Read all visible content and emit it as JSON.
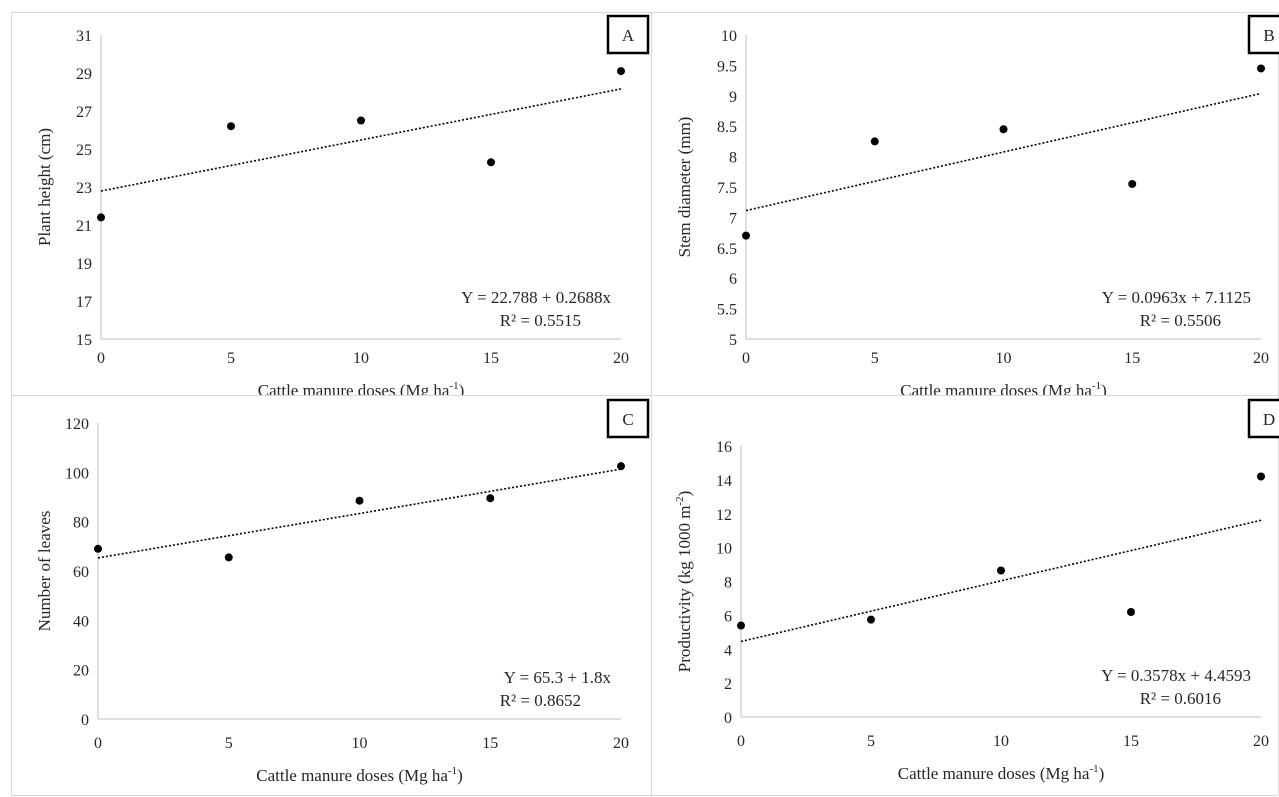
{
  "chart_data": [
    {
      "panel": "A",
      "type": "scatter",
      "ylabel": "Plant height (cm)",
      "xlabel": "Cattle manure doses (Mg ha",
      "xlabel_sup": "-1",
      "xlabel_end": ")",
      "x_ticks": [
        "0",
        "5",
        "10",
        "15",
        "20"
      ],
      "y_ticks": [
        "15",
        "17",
        "19",
        "21",
        "23",
        "25",
        "27",
        "29",
        "31"
      ],
      "xlim": [
        0,
        20
      ],
      "ylim": [
        15,
        31
      ],
      "x": [
        0,
        5,
        10,
        15,
        20
      ],
      "y": [
        21.4,
        26.2,
        26.5,
        24.3,
        29.1
      ],
      "trendline": {
        "intercept": 22.788,
        "slope": 0.2688,
        "style": "dotted linear"
      },
      "equation": "Y = 22.788 + 0.2688x",
      "r2": "R² = 0.5515",
      "grid": false,
      "legend": "none"
    },
    {
      "panel": "B",
      "type": "scatter",
      "ylabel": "Stem diameter (mm)",
      "xlabel": "Cattle manure doses (Mg ha",
      "xlabel_sup": "-1",
      "xlabel_end": ")",
      "x_ticks": [
        "0",
        "5",
        "10",
        "15",
        "20"
      ],
      "y_ticks": [
        "5",
        "5.5",
        "6",
        "6.5",
        "7",
        "7.5",
        "8",
        "8.5",
        "9",
        "9.5",
        "10"
      ],
      "xlim": [
        0,
        20
      ],
      "ylim": [
        5,
        10
      ],
      "x": [
        0,
        5,
        10,
        15,
        20
      ],
      "y": [
        6.7,
        8.25,
        8.45,
        7.55,
        9.45
      ],
      "trendline": {
        "intercept": 7.1125,
        "slope": 0.0963,
        "style": "dotted linear"
      },
      "equation": "Y = 0.0963x + 7.1125",
      "r2": "R² = 0.5506",
      "grid": false,
      "legend": "none"
    },
    {
      "panel": "C",
      "type": "scatter",
      "ylabel": "Number of leaves",
      "xlabel": "Cattle manure doses (Mg ha",
      "xlabel_sup": "-1",
      "xlabel_end": ")",
      "x_ticks": [
        "0",
        "5",
        "10",
        "15",
        "20"
      ],
      "y_ticks": [
        "0",
        "20",
        "40",
        "60",
        "80",
        "100",
        "120"
      ],
      "xlim": [
        0,
        20
      ],
      "ylim": [
        0,
        120
      ],
      "x": [
        0,
        5,
        10,
        15,
        20
      ],
      "y": [
        69,
        65.5,
        88.5,
        89.5,
        102.5
      ],
      "trendline": {
        "intercept": 65.3,
        "slope": 1.8,
        "style": "dotted linear"
      },
      "equation": "Y = 65.3 + 1.8x",
      "r2": "R² = 0.8652",
      "grid": false,
      "legend": "none"
    },
    {
      "panel": "D",
      "type": "scatter",
      "ylabel": "Productivity (kg 1000 m",
      "ylabel_sup": "-2",
      "ylabel_end": ")",
      "xlabel": "Cattle manure doses (Mg ha",
      "xlabel_sup": "-1",
      "xlabel_end": ")",
      "x_ticks": [
        "0",
        "5",
        "10",
        "15",
        "20"
      ],
      "y_ticks": [
        "0",
        "2",
        "4",
        "6",
        "8",
        "10",
        "12",
        "14",
        "16"
      ],
      "xlim": [
        0,
        20
      ],
      "ylim": [
        0,
        16
      ],
      "x": [
        0,
        5,
        10,
        15,
        20
      ],
      "y": [
        5.4,
        5.75,
        8.65,
        6.2,
        14.2
      ],
      "trendline": {
        "intercept": 4.4593,
        "slope": 0.3578,
        "style": "dotted linear"
      },
      "equation": "Y = 0.3578x + 4.4593",
      "r2": "R² = 0.6016",
      "grid": false,
      "legend": "none"
    }
  ]
}
